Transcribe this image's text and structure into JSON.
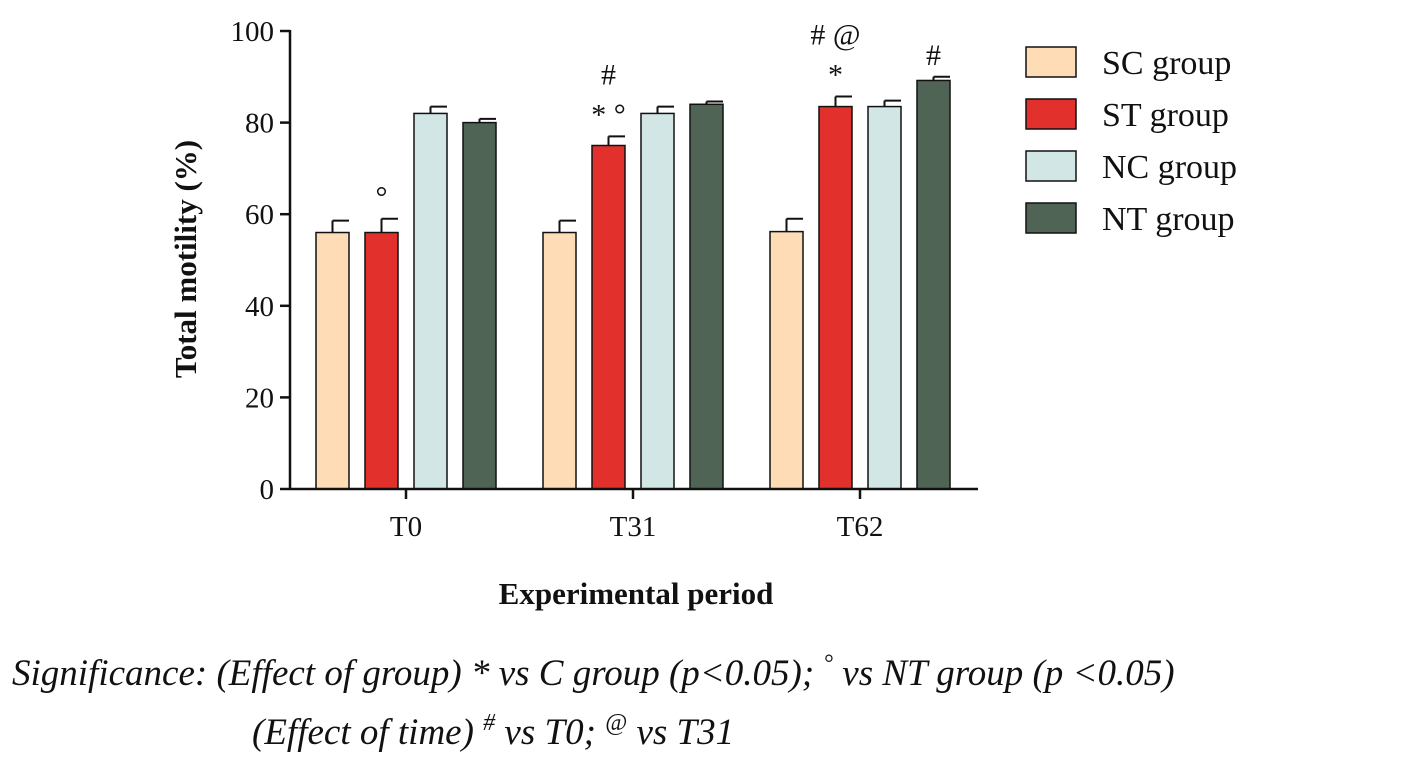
{
  "chart_data": {
    "type": "bar",
    "ylabel": "Total motility (%)",
    "xlabel": "Experimental period",
    "ylim": [
      0,
      100
    ],
    "yticks": [
      "0",
      "20",
      "40",
      "60",
      "80",
      "100"
    ],
    "categories": [
      "T0",
      "T31",
      "T62"
    ],
    "legend_position": "right",
    "series": [
      {
        "name": "SC group",
        "color": "#fddcb6",
        "values": [
          56,
          56,
          56.2
        ],
        "errors": [
          2.6,
          2.6,
          2.8
        ]
      },
      {
        "name": "ST group",
        "color": "#e2312c",
        "values": [
          56,
          75,
          83.5
        ],
        "errors": [
          3.0,
          2.0,
          2.2
        ]
      },
      {
        "name": "NC group",
        "color": "#d3e6e6",
        "values": [
          82,
          82,
          83.5
        ],
        "errors": [
          1.5,
          1.5,
          1.3
        ]
      },
      {
        "name": "NT group",
        "color": "#4f6454",
        "values": [
          80,
          84,
          89.2
        ],
        "errors": [
          0.8,
          0.6,
          0.8
        ]
      }
    ],
    "annotations": [
      {
        "category": 0,
        "series": 1,
        "lines": [
          "°"
        ]
      },
      {
        "category": 1,
        "series": 1,
        "lines": [
          "#",
          "* °"
        ]
      },
      {
        "category": 2,
        "series": 1,
        "lines": [
          "# @",
          "*"
        ]
      },
      {
        "category": 2,
        "series": 3,
        "lines": [
          "#"
        ]
      }
    ]
  },
  "footnote": {
    "line1": {
      "a": "Significance: (Effect of group) ",
      "b": "* vs C group (p<0.05); ",
      "c": "°",
      "d": " vs NT group (p <0.05)"
    },
    "line2": {
      "a": "(Effect of time) ",
      "sup1": "#",
      "b": " vs T0; ",
      "sup2": "@",
      "c": " vs T31"
    }
  }
}
